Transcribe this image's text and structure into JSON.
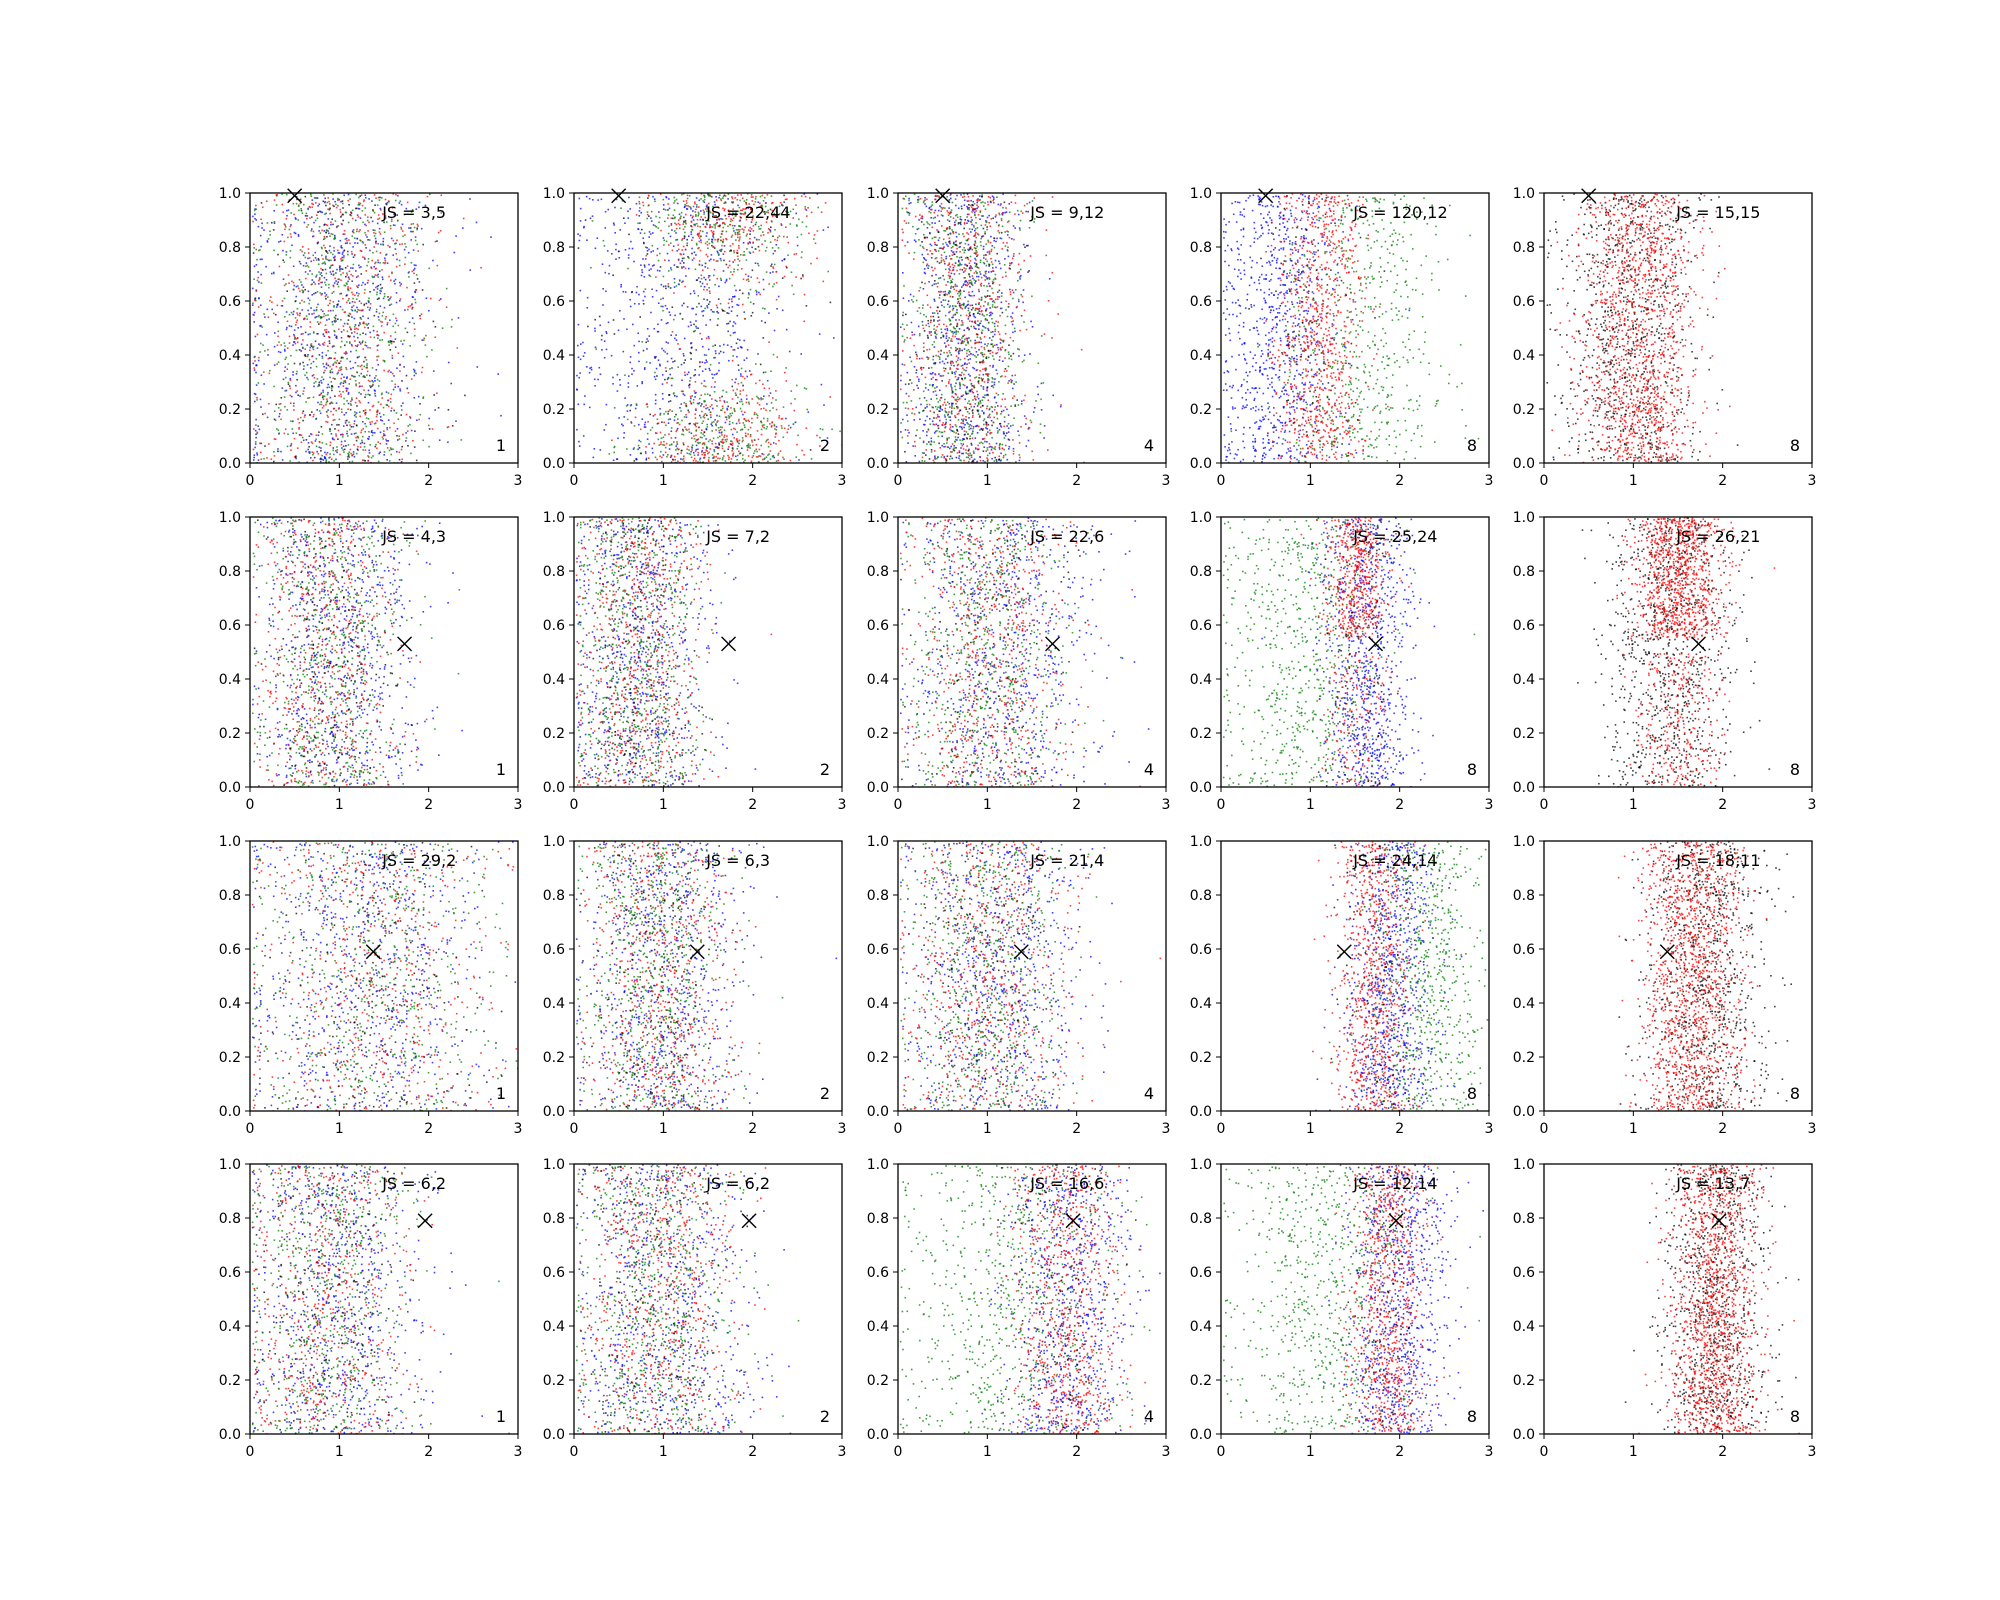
{
  "chart_data": {
    "type": "scatter",
    "layout": {
      "rows": 4,
      "cols": 5
    },
    "xlim": [
      0,
      3
    ],
    "ylim": [
      0,
      1
    ],
    "xticks": [
      "0",
      "1",
      "2",
      "3"
    ],
    "yticks": [
      "0.0",
      "0.2",
      "0.4",
      "0.6",
      "0.8",
      "1.0"
    ],
    "series_colors": {
      "blue": "#0000ff",
      "red": "#ff0000",
      "green": "#008000",
      "black": "#000000"
    },
    "row_markers": [
      {
        "x": 0.5,
        "y": 0.99
      },
      {
        "x": 1.73,
        "y": 0.53
      },
      {
        "x": 1.38,
        "y": 0.59
      },
      {
        "x": 1.96,
        "y": 0.79
      }
    ],
    "panels": [
      {
        "row": 0,
        "col": 0,
        "js_text": "JS = 3,5",
        "corner": "1",
        "clouds": [
          {
            "color": "#0000ff",
            "cx": 1.0,
            "sx": 0.55,
            "n": 700
          },
          {
            "color": "#ff0000",
            "cx": 1.0,
            "sx": 0.5,
            "n": 600
          },
          {
            "color": "#008000",
            "cx": 1.0,
            "sx": 0.5,
            "n": 600
          },
          {
            "color": "#000000",
            "cx": 1.0,
            "sx": 0.5,
            "n": 200
          }
        ]
      },
      {
        "row": 0,
        "col": 1,
        "js_text": "JS = 22,44",
        "corner": "2",
        "clouds": [
          {
            "color": "#0000ff",
            "cx": 1.2,
            "sx": 0.65,
            "n": 700
          },
          {
            "color": "#ff0000",
            "cx": 1.7,
            "sx": 0.45,
            "n": 650,
            "yshape": "ends"
          },
          {
            "color": "#008000",
            "cx": 1.6,
            "sx": 0.5,
            "n": 600,
            "yshape": "ends"
          },
          {
            "color": "#000000",
            "cx": 1.4,
            "sx": 0.5,
            "n": 150
          }
        ]
      },
      {
        "row": 0,
        "col": 2,
        "js_text": "JS = 9,12",
        "corner": "4",
        "clouds": [
          {
            "color": "#0000ff",
            "cx": 0.75,
            "sx": 0.35,
            "n": 700
          },
          {
            "color": "#ff0000",
            "cx": 0.8,
            "sx": 0.35,
            "n": 650
          },
          {
            "color": "#008000",
            "cx": 0.75,
            "sx": 0.35,
            "n": 650
          },
          {
            "color": "#000000",
            "cx": 0.75,
            "sx": 0.3,
            "n": 200
          }
        ]
      },
      {
        "row": 0,
        "col": 3,
        "js_text": "JS = 120,12",
        "corner": "8",
        "clouds": [
          {
            "color": "#0000ff",
            "cx": 0.6,
            "sx": 0.35,
            "n": 800
          },
          {
            "color": "#ff0000",
            "cx": 1.1,
            "sx": 0.25,
            "n": 800
          },
          {
            "color": "#008000",
            "cx": 1.6,
            "sx": 0.45,
            "n": 550
          },
          {
            "color": "#000000",
            "cx": 1.0,
            "sx": 0.3,
            "n": 100
          }
        ]
      },
      {
        "row": 0,
        "col": 4,
        "js_text": "JS = 15,15",
        "corner": "8",
        "clouds": [
          {
            "color": "#000000",
            "cx": 0.95,
            "sx": 0.38,
            "n": 900
          },
          {
            "color": "#ff0000",
            "cx": 1.05,
            "sx": 0.32,
            "n": 1300
          }
        ]
      },
      {
        "row": 1,
        "col": 0,
        "js_text": "JS = 4,3",
        "corner": "1",
        "clouds": [
          {
            "color": "#0000ff",
            "cx": 1.0,
            "sx": 0.45,
            "n": 700
          },
          {
            "color": "#ff0000",
            "cx": 0.85,
            "sx": 0.4,
            "n": 600
          },
          {
            "color": "#008000",
            "cx": 0.9,
            "sx": 0.4,
            "n": 600
          },
          {
            "color": "#000000",
            "cx": 0.9,
            "sx": 0.4,
            "n": 200
          }
        ]
      },
      {
        "row": 1,
        "col": 1,
        "js_text": "JS = 7,2",
        "corner": "2",
        "clouds": [
          {
            "color": "#0000ff",
            "cx": 0.75,
            "sx": 0.4,
            "n": 700
          },
          {
            "color": "#ff0000",
            "cx": 0.7,
            "sx": 0.35,
            "n": 650
          },
          {
            "color": "#008000",
            "cx": 0.7,
            "sx": 0.35,
            "n": 650
          },
          {
            "color": "#000000",
            "cx": 0.7,
            "sx": 0.3,
            "n": 200
          }
        ]
      },
      {
        "row": 1,
        "col": 2,
        "js_text": "JS = 22,6",
        "corner": "4",
        "clouds": [
          {
            "color": "#0000ff",
            "cx": 1.2,
            "sx": 0.55,
            "n": 700
          },
          {
            "color": "#ff0000",
            "cx": 1.0,
            "sx": 0.45,
            "n": 650
          },
          {
            "color": "#008000",
            "cx": 1.0,
            "sx": 0.45,
            "n": 600
          },
          {
            "color": "#000000",
            "cx": 1.0,
            "sx": 0.4,
            "n": 150
          }
        ]
      },
      {
        "row": 1,
        "col": 3,
        "js_text": "JS = 25,24",
        "corner": "8",
        "clouds": [
          {
            "color": "#008000",
            "cx": 0.9,
            "sx": 0.45,
            "n": 700
          },
          {
            "color": "#0000ff",
            "cx": 1.65,
            "sx": 0.25,
            "n": 800
          },
          {
            "color": "#ff0000",
            "cx": 1.5,
            "sx": 0.18,
            "n": 650,
            "yshape": "top"
          },
          {
            "color": "#000000",
            "cx": 1.5,
            "sx": 0.2,
            "n": 100
          }
        ]
      },
      {
        "row": 1,
        "col": 4,
        "js_text": "JS = 26,21",
        "corner": "8",
        "clouds": [
          {
            "color": "#000000",
            "cx": 1.4,
            "sx": 0.35,
            "n": 900
          },
          {
            "color": "#ff0000",
            "cx": 1.5,
            "sx": 0.25,
            "n": 1200,
            "yshape": "top"
          }
        ]
      },
      {
        "row": 2,
        "col": 0,
        "js_text": "JS = 29,2",
        "corner": "1",
        "clouds": [
          {
            "color": "#0000ff",
            "cx": 1.3,
            "sx": 0.7,
            "n": 700
          },
          {
            "color": "#ff0000",
            "cx": 1.4,
            "sx": 0.7,
            "n": 600
          },
          {
            "color": "#008000",
            "cx": 1.4,
            "sx": 0.7,
            "n": 600
          },
          {
            "color": "#000000",
            "cx": 1.4,
            "sx": 0.6,
            "n": 200
          }
        ]
      },
      {
        "row": 2,
        "col": 1,
        "js_text": "JS = 6,3",
        "corner": "2",
        "clouds": [
          {
            "color": "#0000ff",
            "cx": 1.0,
            "sx": 0.45,
            "n": 700
          },
          {
            "color": "#ff0000",
            "cx": 0.95,
            "sx": 0.4,
            "n": 650
          },
          {
            "color": "#008000",
            "cx": 0.9,
            "sx": 0.4,
            "n": 650
          },
          {
            "color": "#000000",
            "cx": 0.9,
            "sx": 0.35,
            "n": 200
          }
        ]
      },
      {
        "row": 2,
        "col": 2,
        "js_text": "JS = 21,4",
        "corner": "4",
        "clouds": [
          {
            "color": "#0000ff",
            "cx": 1.1,
            "sx": 0.5,
            "n": 700
          },
          {
            "color": "#ff0000",
            "cx": 1.0,
            "sx": 0.45,
            "n": 650
          },
          {
            "color": "#008000",
            "cx": 0.95,
            "sx": 0.45,
            "n": 600
          },
          {
            "color": "#000000",
            "cx": 0.95,
            "sx": 0.4,
            "n": 200
          }
        ]
      },
      {
        "row": 2,
        "col": 3,
        "js_text": "JS = 24,14",
        "corner": "8",
        "clouds": [
          {
            "color": "#0000ff",
            "cx": 1.9,
            "sx": 0.25,
            "n": 800
          },
          {
            "color": "#ff0000",
            "cx": 1.7,
            "sx": 0.22,
            "n": 800
          },
          {
            "color": "#008000",
            "cx": 2.3,
            "sx": 0.35,
            "n": 650
          },
          {
            "color": "#000000",
            "cx": 1.8,
            "sx": 0.25,
            "n": 100
          }
        ]
      },
      {
        "row": 2,
        "col": 4,
        "js_text": "JS = 18,11",
        "corner": "8",
        "clouds": [
          {
            "color": "#000000",
            "cx": 1.8,
            "sx": 0.35,
            "n": 900
          },
          {
            "color": "#ff0000",
            "cx": 1.65,
            "sx": 0.28,
            "n": 1300
          }
        ]
      },
      {
        "row": 3,
        "col": 0,
        "js_text": "JS = 6,2",
        "corner": "1",
        "clouds": [
          {
            "color": "#0000ff",
            "cx": 1.0,
            "sx": 0.5,
            "n": 700
          },
          {
            "color": "#ff0000",
            "cx": 0.85,
            "sx": 0.45,
            "n": 600
          },
          {
            "color": "#008000",
            "cx": 0.85,
            "sx": 0.45,
            "n": 600
          },
          {
            "color": "#000000",
            "cx": 0.85,
            "sx": 0.4,
            "n": 200
          }
        ]
      },
      {
        "row": 3,
        "col": 1,
        "js_text": "JS = 6,2",
        "corner": "2",
        "clouds": [
          {
            "color": "#0000ff",
            "cx": 1.0,
            "sx": 0.5,
            "n": 700
          },
          {
            "color": "#ff0000",
            "cx": 0.95,
            "sx": 0.45,
            "n": 650
          },
          {
            "color": "#008000",
            "cx": 0.9,
            "sx": 0.45,
            "n": 650
          },
          {
            "color": "#000000",
            "cx": 0.9,
            "sx": 0.4,
            "n": 200
          }
        ]
      },
      {
        "row": 3,
        "col": 2,
        "js_text": "JS = 16,6",
        "corner": "4",
        "clouds": [
          {
            "color": "#008000",
            "cx": 1.2,
            "sx": 0.6,
            "n": 700
          },
          {
            "color": "#0000ff",
            "cx": 1.9,
            "sx": 0.35,
            "n": 700
          },
          {
            "color": "#ff0000",
            "cx": 1.9,
            "sx": 0.3,
            "n": 700
          },
          {
            "color": "#000000",
            "cx": 1.8,
            "sx": 0.3,
            "n": 150
          }
        ]
      },
      {
        "row": 3,
        "col": 3,
        "js_text": "JS = 12,14",
        "corner": "8",
        "clouds": [
          {
            "color": "#008000",
            "cx": 1.1,
            "sx": 0.5,
            "n": 700
          },
          {
            "color": "#0000ff",
            "cx": 2.0,
            "sx": 0.28,
            "n": 800
          },
          {
            "color": "#ff0000",
            "cx": 1.85,
            "sx": 0.2,
            "n": 800
          },
          {
            "color": "#000000",
            "cx": 1.85,
            "sx": 0.2,
            "n": 100
          }
        ]
      },
      {
        "row": 3,
        "col": 4,
        "js_text": "JS = 13,7",
        "corner": "8",
        "clouds": [
          {
            "color": "#000000",
            "cx": 1.9,
            "sx": 0.3,
            "n": 900
          },
          {
            "color": "#ff0000",
            "cx": 1.9,
            "sx": 0.25,
            "n": 1300
          }
        ]
      }
    ]
  }
}
